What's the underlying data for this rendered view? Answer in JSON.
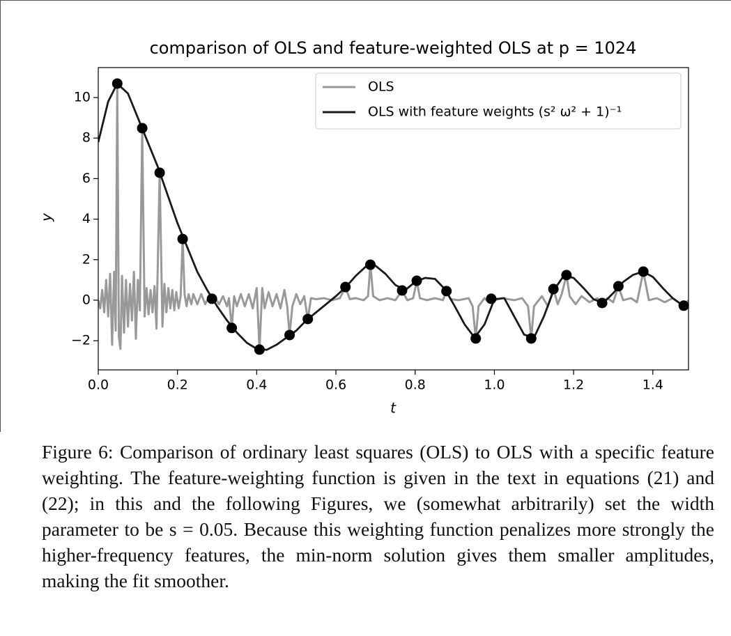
{
  "chart_data": {
    "type": "line",
    "title": "comparison of OLS and feature-weighted OLS at p = 1024",
    "x_label": "t",
    "y_label": "y",
    "xlim": [
      0,
      1.49
    ],
    "ylim": [
      -3.44,
      11.48
    ],
    "xticks": [
      {
        "value": 0,
        "label": "0.0"
      },
      {
        "value": 0.2,
        "label": "0.2"
      },
      {
        "value": 0.4,
        "label": "0.4"
      },
      {
        "value": 0.6,
        "label": "0.6"
      },
      {
        "value": 0.8,
        "label": "0.8"
      },
      {
        "value": 1.0,
        "label": "1.0"
      },
      {
        "value": 1.2,
        "label": "1.2"
      },
      {
        "value": 1.4,
        "label": "1.4"
      }
    ],
    "yticks": [
      {
        "value": -2,
        "label": "−2"
      },
      0,
      2,
      4,
      6,
      8,
      10
    ],
    "legend": "upper right",
    "series": [
      {
        "name": "OLS",
        "color": "#999999",
        "x": [
          0,
          0.005,
          0.01,
          0.015,
          0.02,
          0.025,
          0.03,
          0.035,
          0.04,
          0.044,
          0.048,
          0.052,
          0.056,
          0.06,
          0.065,
          0.07,
          0.075,
          0.08,
          0.085,
          0.09,
          0.095,
          0.1,
          0.105,
          0.111,
          0.117,
          0.122,
          0.127,
          0.132,
          0.137,
          0.142,
          0.147,
          0.155,
          0.162,
          0.167,
          0.172,
          0.177,
          0.182,
          0.187,
          0.192,
          0.197,
          0.203,
          0.208,
          0.213,
          0.218,
          0.223,
          0.228,
          0.235,
          0.24,
          0.25,
          0.26,
          0.27,
          0.28,
          0.287,
          0.295,
          0.305,
          0.315,
          0.325,
          0.33,
          0.337,
          0.343,
          0.35,
          0.36,
          0.37,
          0.38,
          0.39,
          0.4,
          0.407,
          0.414,
          0.42,
          0.43,
          0.44,
          0.45,
          0.46,
          0.47,
          0.477,
          0.483,
          0.49,
          0.5,
          0.51,
          0.52,
          0.529,
          0.537,
          0.55,
          0.57,
          0.59,
          0.61,
          0.624,
          0.635,
          0.65,
          0.67,
          0.681,
          0.687,
          0.694,
          0.71,
          0.73,
          0.75,
          0.767,
          0.78,
          0.795,
          0.804,
          0.812,
          0.83,
          0.85,
          0.87,
          0.879,
          0.89,
          0.91,
          0.935,
          0.945,
          0.953,
          0.96,
          0.975,
          0.985,
          0.992,
          1.0,
          1.02,
          1.05,
          1.07,
          1.085,
          1.093,
          1.1,
          1.12,
          1.135,
          1.149,
          1.16,
          1.17,
          1.182,
          1.19,
          1.205,
          1.22,
          1.24,
          1.26,
          1.272,
          1.285,
          1.3,
          1.313,
          1.325,
          1.345,
          1.36,
          1.376,
          1.39,
          1.41,
          1.43,
          1.45,
          1.465,
          1.478,
          1.49
        ],
        "values": [
          0,
          -0.4,
          0.5,
          -0.6,
          1.0,
          -0.8,
          1.3,
          -2.2,
          1.4,
          -1.5,
          10.69,
          -1.8,
          -2.4,
          1.2,
          -1.6,
          1.0,
          -1.3,
          0.8,
          -1.0,
          1.4,
          -1.9,
          1.0,
          -0.5,
          8.49,
          -0.8,
          0.6,
          -0.7,
          0.5,
          -0.6,
          0.7,
          -1.4,
          6.29,
          -1.3,
          0.8,
          -0.6,
          0.6,
          -0.4,
          0.5,
          -0.5,
          0.4,
          -0.4,
          0.2,
          3.02,
          0.3,
          -0.3,
          0.3,
          -0.2,
          0.3,
          -0.2,
          0.3,
          -0.2,
          0.2,
          0.07,
          0.1,
          -0.2,
          0.2,
          -0.3,
          0.1,
          -1.37,
          0.2,
          -0.3,
          0.3,
          -0.3,
          0.3,
          -0.4,
          0.6,
          -2.44,
          0.6,
          -0.4,
          0.4,
          -0.3,
          0.3,
          -0.4,
          0.5,
          -0.3,
          -1.72,
          -0.3,
          0.3,
          -0.2,
          0.2,
          -0.93,
          0.1,
          0.05,
          0.1,
          0.0,
          0.1,
          0.65,
          0.05,
          0.1,
          0.0,
          0.2,
          1.75,
          0.2,
          0.0,
          0.1,
          0.0,
          0.48,
          0.0,
          0.1,
          0.96,
          0.1,
          0.0,
          0.1,
          0.0,
          0.45,
          0.05,
          0.0,
          0.1,
          -0.3,
          -1.89,
          -0.3,
          0.1,
          -0.1,
          0.07,
          0.0,
          0.1,
          0.0,
          0.1,
          -0.3,
          -1.89,
          -0.3,
          0.2,
          -0.3,
          0.55,
          -0.2,
          0.3,
          1.24,
          0.2,
          -0.2,
          0.2,
          -0.1,
          0.1,
          -0.14,
          0.1,
          -0.1,
          0.69,
          0.0,
          0.1,
          -0.1,
          1.41,
          0.0,
          0.1,
          -0.1,
          0.1,
          -0.1,
          -0.27,
          0.0
        ]
      },
      {
        "name": "OLS with feature weights (s² ω² + 1)⁻¹",
        "color": "#1a1a1a",
        "x": [
          0,
          0.025,
          0.048,
          0.075,
          0.1,
          0.125,
          0.15,
          0.175,
          0.2,
          0.225,
          0.25,
          0.275,
          0.3,
          0.325,
          0.35,
          0.375,
          0.4,
          0.425,
          0.45,
          0.475,
          0.5,
          0.525,
          0.55,
          0.575,
          0.6,
          0.625,
          0.65,
          0.675,
          0.7,
          0.725,
          0.75,
          0.775,
          0.8,
          0.825,
          0.85,
          0.875,
          0.9,
          0.925,
          0.95,
          0.975,
          1.0,
          1.025,
          1.05,
          1.075,
          1.1,
          1.125,
          1.15,
          1.175,
          1.2,
          1.225,
          1.25,
          1.275,
          1.3,
          1.325,
          1.35,
          1.375,
          1.4,
          1.425,
          1.45,
          1.475,
          1.49
        ],
        "values": [
          7.8,
          9.8,
          10.69,
          10.2,
          9.0,
          7.8,
          6.6,
          5.2,
          3.8,
          2.6,
          1.4,
          0.5,
          -0.3,
          -1.0,
          -1.6,
          -2.1,
          -2.4,
          -2.45,
          -2.2,
          -1.85,
          -1.5,
          -1.0,
          -0.6,
          -0.2,
          0.2,
          0.65,
          1.2,
          1.65,
          1.7,
          1.3,
          0.75,
          0.5,
          0.9,
          1.1,
          1.05,
          0.55,
          -0.3,
          -1.2,
          -1.85,
          -1.2,
          0.05,
          0.1,
          -0.8,
          -1.7,
          -1.85,
          -0.8,
          0.5,
          1.2,
          1.1,
          0.6,
          0.05,
          -0.14,
          0.35,
          0.9,
          1.25,
          1.41,
          1.15,
          0.6,
          0.1,
          -0.25,
          -0.35
        ]
      }
    ],
    "points": {
      "color": "#000000",
      "x": [
        0.048,
        0.111,
        0.155,
        0.213,
        0.287,
        0.337,
        0.407,
        0.483,
        0.529,
        0.624,
        0.687,
        0.767,
        0.804,
        0.879,
        0.953,
        0.992,
        1.093,
        1.149,
        1.182,
        1.272,
        1.313,
        1.376,
        1.478
      ],
      "values": [
        10.69,
        8.49,
        6.29,
        3.02,
        0.07,
        -1.37,
        -2.44,
        -1.72,
        -0.93,
        0.65,
        1.75,
        0.48,
        0.96,
        0.45,
        -1.89,
        0.07,
        -1.89,
        0.55,
        1.24,
        -0.14,
        0.69,
        1.41,
        -0.27
      ]
    }
  },
  "caption": "Figure 6: Comparison of ordinary least squares (OLS) to OLS with a specific feature weighting. The feature-weighting function is given in the text in equations (21) and (22); in this and the following Figures, we (somewhat arbitrarily) set the width parameter to be s = 0.05. Because this weighting function penalizes more strongly the higher-frequency features, the min-norm solution gives them smaller amplitudes, making the fit smoother."
}
